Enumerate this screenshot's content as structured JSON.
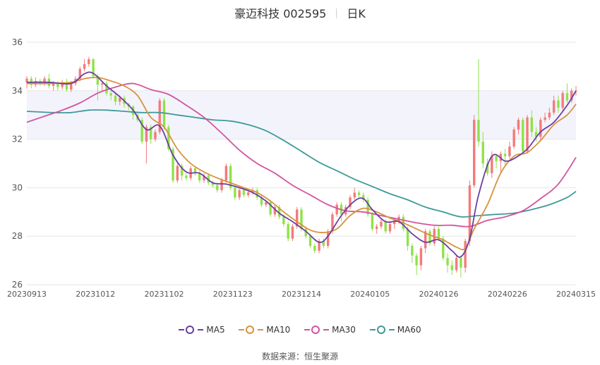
{
  "title": {
    "name": "豪迈科技 002595",
    "period": "日K"
  },
  "source_label": "数据来源：",
  "source_value": "恒生聚源",
  "colors": {
    "up": "#f47a7a",
    "down": "#8fe24a",
    "ma5": "#6b3fa0",
    "ma10": "#d9913c",
    "ma30": "#d453a0",
    "ma60": "#3f9a9a",
    "band": "#f3f4fb",
    "grid": "#e6e6e6"
  },
  "chart_data": {
    "type": "candlestick",
    "ylim": [
      26,
      36
    ],
    "yticks": [
      26,
      28,
      30,
      32,
      34,
      36
    ],
    "xticks": [
      "20230913",
      "20231012",
      "20231102",
      "20231123",
      "20231214",
      "20240105",
      "20240126",
      "20240226",
      "20240315"
    ],
    "legend": [
      "MA5",
      "MA10",
      "MA30",
      "MA60"
    ],
    "n_bars": 125,
    "candles": [
      [
        34.35,
        34.5,
        34.6,
        34.1
      ],
      [
        34.5,
        34.25,
        34.6,
        34.1
      ],
      [
        34.25,
        34.4,
        34.55,
        34.15
      ],
      [
        34.4,
        34.3,
        34.5,
        34.2
      ],
      [
        34.3,
        34.5,
        34.6,
        34.2
      ],
      [
        34.5,
        34.2,
        34.7,
        34.1
      ],
      [
        34.2,
        34.3,
        34.4,
        34.0
      ],
      [
        34.3,
        34.15,
        34.4,
        34.0
      ],
      [
        34.15,
        34.35,
        34.45,
        34.05
      ],
      [
        34.35,
        34.05,
        34.5,
        33.95
      ],
      [
        34.05,
        34.3,
        34.4,
        33.95
      ],
      [
        34.3,
        34.5,
        34.6,
        34.2
      ],
      [
        34.5,
        34.9,
        35.0,
        34.4
      ],
      [
        34.9,
        35.1,
        35.3,
        34.8
      ],
      [
        35.1,
        35.3,
        35.4,
        35.0
      ],
      [
        35.3,
        34.6,
        35.35,
        34.5
      ],
      [
        34.6,
        34.25,
        34.7,
        33.6
      ],
      [
        34.25,
        34.3,
        34.4,
        34.0
      ],
      [
        34.3,
        33.9,
        34.4,
        33.8
      ],
      [
        33.9,
        33.8,
        34.0,
        33.6
      ],
      [
        33.8,
        33.55,
        33.9,
        33.4
      ],
      [
        33.55,
        33.7,
        33.8,
        33.4
      ],
      [
        33.7,
        33.45,
        33.8,
        33.3
      ],
      [
        33.45,
        33.35,
        33.5,
        33.2
      ],
      [
        33.35,
        33.0,
        33.4,
        32.8
      ],
      [
        33.0,
        32.8,
        33.1,
        32.7
      ],
      [
        32.8,
        31.9,
        32.9,
        31.8
      ],
      [
        31.9,
        32.5,
        32.6,
        31.0
      ],
      [
        32.5,
        32.0,
        32.6,
        31.8
      ],
      [
        32.0,
        32.3,
        32.4,
        31.9
      ],
      [
        32.3,
        33.6,
        33.7,
        32.2
      ],
      [
        33.6,
        32.5,
        33.7,
        32.4
      ],
      [
        32.5,
        31.6,
        32.6,
        31.5
      ],
      [
        31.6,
        30.3,
        31.7,
        30.2
      ],
      [
        30.3,
        30.9,
        31.0,
        30.2
      ],
      [
        30.9,
        30.5,
        31.0,
        30.3
      ],
      [
        30.5,
        30.4,
        30.6,
        30.3
      ],
      [
        30.4,
        30.8,
        30.9,
        30.3
      ],
      [
        30.8,
        30.6,
        30.9,
        30.5
      ],
      [
        30.6,
        30.3,
        30.7,
        30.2
      ],
      [
        30.3,
        30.5,
        30.6,
        30.2
      ],
      [
        30.5,
        30.2,
        30.6,
        30.1
      ],
      [
        30.2,
        30.1,
        30.3,
        30.0
      ],
      [
        30.1,
        29.9,
        30.2,
        29.8
      ],
      [
        29.9,
        30.3,
        30.4,
        29.8
      ],
      [
        30.3,
        30.9,
        31.0,
        30.2
      ],
      [
        30.9,
        30.0,
        31.0,
        29.9
      ],
      [
        30.0,
        29.6,
        30.1,
        29.5
      ],
      [
        29.6,
        29.9,
        30.0,
        29.5
      ],
      [
        29.9,
        29.7,
        30.0,
        29.6
      ],
      [
        29.7,
        29.8,
        29.9,
        29.6
      ],
      [
        29.8,
        29.9,
        30.0,
        29.7
      ],
      [
        29.9,
        29.6,
        30.0,
        29.5
      ],
      [
        29.6,
        29.3,
        29.7,
        29.2
      ],
      [
        29.3,
        29.4,
        29.5,
        29.2
      ],
      [
        29.4,
        28.9,
        29.5,
        28.8
      ],
      [
        28.9,
        29.2,
        29.3,
        28.8
      ],
      [
        29.2,
        28.8,
        29.3,
        28.7
      ],
      [
        28.8,
        28.5,
        28.9,
        28.4
      ],
      [
        28.5,
        27.9,
        28.6,
        27.8
      ],
      [
        27.9,
        28.4,
        28.5,
        27.8
      ],
      [
        28.4,
        29.1,
        29.2,
        28.3
      ],
      [
        29.1,
        28.3,
        29.2,
        28.2
      ],
      [
        28.3,
        28.0,
        28.4,
        27.9
      ],
      [
        28.0,
        27.6,
        28.1,
        27.5
      ],
      [
        27.6,
        27.4,
        27.7,
        27.3
      ],
      [
        27.4,
        27.8,
        27.9,
        27.3
      ],
      [
        27.8,
        27.6,
        27.9,
        27.5
      ],
      [
        27.6,
        28.2,
        28.3,
        27.5
      ],
      [
        28.2,
        28.9,
        29.0,
        28.1
      ],
      [
        28.9,
        29.3,
        29.4,
        28.8
      ],
      [
        29.3,
        28.9,
        29.4,
        28.6
      ],
      [
        28.9,
        29.2,
        29.3,
        28.8
      ],
      [
        29.2,
        29.6,
        29.7,
        29.1
      ],
      [
        29.6,
        29.8,
        30.0,
        29.5
      ],
      [
        29.8,
        29.7,
        29.9,
        29.6
      ],
      [
        29.7,
        29.5,
        29.8,
        29.4
      ],
      [
        29.5,
        28.9,
        29.6,
        28.8
      ],
      [
        28.9,
        28.3,
        29.0,
        28.2
      ],
      [
        28.3,
        28.4,
        28.5,
        28.1
      ],
      [
        28.4,
        28.6,
        28.7,
        28.3
      ],
      [
        28.6,
        28.2,
        28.7,
        28.1
      ],
      [
        28.2,
        28.5,
        28.6,
        28.1
      ],
      [
        28.5,
        28.6,
        28.7,
        28.3
      ],
      [
        28.6,
        28.8,
        28.9,
        28.5
      ],
      [
        28.8,
        28.3,
        28.9,
        28.2
      ],
      [
        28.3,
        27.6,
        28.4,
        27.4
      ],
      [
        27.6,
        27.2,
        27.7,
        26.9
      ],
      [
        27.2,
        26.8,
        27.3,
        26.4
      ],
      [
        26.8,
        27.5,
        27.6,
        26.6
      ],
      [
        27.5,
        28.2,
        28.3,
        27.3
      ],
      [
        28.2,
        27.7,
        28.3,
        27.6
      ],
      [
        27.7,
        28.3,
        28.4,
        27.6
      ],
      [
        28.3,
        27.9,
        28.4,
        27.8
      ],
      [
        27.9,
        27.1,
        28.0,
        27.0
      ],
      [
        27.1,
        26.8,
        27.3,
        26.5
      ],
      [
        26.8,
        26.6,
        27.0,
        26.4
      ],
      [
        26.6,
        27.1,
        27.2,
        26.5
      ],
      [
        27.1,
        26.7,
        27.2,
        26.3
      ],
      [
        26.7,
        27.8,
        27.9,
        26.5
      ],
      [
        27.8,
        30.1,
        30.3,
        27.6
      ],
      [
        30.1,
        32.8,
        33.0,
        30.0
      ],
      [
        32.8,
        31.9,
        35.3,
        31.7
      ],
      [
        31.9,
        31.0,
        32.3,
        30.8
      ],
      [
        31.0,
        30.6,
        31.2,
        30.5
      ],
      [
        30.6,
        31.3,
        31.5,
        30.4
      ],
      [
        31.3,
        31.1,
        31.4,
        30.8
      ],
      [
        31.1,
        31.4,
        31.5,
        30.6
      ],
      [
        31.4,
        31.3,
        31.6,
        30.9
      ],
      [
        31.3,
        31.7,
        31.9,
        31.2
      ],
      [
        31.7,
        32.4,
        32.5,
        31.6
      ],
      [
        32.4,
        32.8,
        32.9,
        32.2
      ],
      [
        32.8,
        31.5,
        32.9,
        31.4
      ],
      [
        31.5,
        32.9,
        33.0,
        31.4
      ],
      [
        32.9,
        32.3,
        33.2,
        32.1
      ],
      [
        32.3,
        32.1,
        32.5,
        31.9
      ],
      [
        32.1,
        32.8,
        32.9,
        31.9
      ],
      [
        32.8,
        32.9,
        33.1,
        32.7
      ],
      [
        32.9,
        33.1,
        33.3,
        32.8
      ],
      [
        33.1,
        33.6,
        33.8,
        33.0
      ],
      [
        33.6,
        33.3,
        33.8,
        33.1
      ],
      [
        33.3,
        33.9,
        34.0,
        33.2
      ],
      [
        33.9,
        33.6,
        34.3,
        33.5
      ],
      [
        33.6,
        34.0,
        34.1,
        33.5
      ],
      [
        34.0,
        34.0,
        34.2,
        33.8
      ]
    ],
    "ma5": [
      [
        0,
        34.35
      ],
      [
        5,
        34.35
      ],
      [
        10,
        34.3
      ],
      [
        13,
        34.7
      ],
      [
        15,
        34.72
      ],
      [
        18,
        34.2
      ],
      [
        21,
        33.75
      ],
      [
        24,
        33.2
      ],
      [
        27,
        32.4
      ],
      [
        30,
        32.55
      ],
      [
        33,
        31.35
      ],
      [
        36,
        30.65
      ],
      [
        39,
        30.6
      ],
      [
        42,
        30.2
      ],
      [
        45,
        30.15
      ],
      [
        48,
        30.0
      ],
      [
        51,
        29.8
      ],
      [
        54,
        29.45
      ],
      [
        57,
        28.95
      ],
      [
        60,
        28.6
      ],
      [
        63,
        28.2
      ],
      [
        66,
        27.75
      ],
      [
        68,
        28.0
      ],
      [
        71,
        28.85
      ],
      [
        74,
        29.45
      ],
      [
        76,
        29.55
      ],
      [
        78,
        29.1
      ],
      [
        81,
        28.6
      ],
      [
        84,
        28.6
      ],
      [
        87,
        28.1
      ],
      [
        90,
        27.75
      ],
      [
        93,
        27.85
      ],
      [
        96,
        27.4
      ],
      [
        98,
        27.15
      ],
      [
        100,
        27.9
      ],
      [
        102,
        29.7
      ],
      [
        105,
        31.3
      ],
      [
        108,
        31.1
      ],
      [
        110,
        31.2
      ],
      [
        113,
        31.6
      ],
      [
        116,
        32.3
      ],
      [
        119,
        32.7
      ],
      [
        122,
        33.4
      ],
      [
        124,
        34.0
      ]
    ],
    "ma10": [
      [
        0,
        34.3
      ],
      [
        5,
        34.3
      ],
      [
        10,
        34.35
      ],
      [
        13,
        34.5
      ],
      [
        16,
        34.55
      ],
      [
        19,
        34.4
      ],
      [
        22,
        34.2
      ],
      [
        25,
        33.8
      ],
      [
        28,
        32.9
      ],
      [
        31,
        32.5
      ],
      [
        34,
        31.6
      ],
      [
        37,
        31.0
      ],
      [
        40,
        30.65
      ],
      [
        43,
        30.4
      ],
      [
        46,
        30.2
      ],
      [
        49,
        30.0
      ],
      [
        52,
        29.8
      ],
      [
        55,
        29.45
      ],
      [
        58,
        29.0
      ],
      [
        61,
        28.6
      ],
      [
        64,
        28.25
      ],
      [
        67,
        28.15
      ],
      [
        70,
        28.3
      ],
      [
        73,
        28.85
      ],
      [
        76,
        29.15
      ],
      [
        79,
        29.0
      ],
      [
        82,
        28.75
      ],
      [
        85,
        28.55
      ],
      [
        88,
        28.3
      ],
      [
        91,
        28.05
      ],
      [
        94,
        27.85
      ],
      [
        97,
        27.55
      ],
      [
        99,
        27.5
      ],
      [
        101,
        28.3
      ],
      [
        104,
        29.3
      ],
      [
        107,
        30.6
      ],
      [
        110,
        31.3
      ],
      [
        113,
        31.45
      ],
      [
        116,
        31.95
      ],
      [
        119,
        32.6
      ],
      [
        122,
        33.0
      ],
      [
        124,
        33.45
      ]
    ],
    "ma30": [
      [
        0,
        32.7
      ],
      [
        4,
        32.95
      ],
      [
        8,
        33.2
      ],
      [
        12,
        33.5
      ],
      [
        16,
        33.9
      ],
      [
        20,
        34.15
      ],
      [
        24,
        34.3
      ],
      [
        28,
        34.05
      ],
      [
        32,
        33.85
      ],
      [
        36,
        33.4
      ],
      [
        40,
        32.9
      ],
      [
        44,
        32.25
      ],
      [
        48,
        31.55
      ],
      [
        52,
        31.0
      ],
      [
        56,
        30.6
      ],
      [
        60,
        30.1
      ],
      [
        64,
        29.7
      ],
      [
        68,
        29.3
      ],
      [
        72,
        29.05
      ],
      [
        76,
        29.0
      ],
      [
        80,
        28.85
      ],
      [
        84,
        28.7
      ],
      [
        88,
        28.55
      ],
      [
        92,
        28.45
      ],
      [
        96,
        28.45
      ],
      [
        100,
        28.4
      ],
      [
        104,
        28.65
      ],
      [
        108,
        28.8
      ],
      [
        112,
        29.05
      ],
      [
        116,
        29.55
      ],
      [
        120,
        30.15
      ],
      [
        124,
        31.25
      ]
    ],
    "ma60": [
      [
        0,
        33.15
      ],
      [
        6,
        33.1
      ],
      [
        10,
        33.1
      ],
      [
        14,
        33.2
      ],
      [
        18,
        33.2
      ],
      [
        22,
        33.15
      ],
      [
        26,
        33.1
      ],
      [
        30,
        33.1
      ],
      [
        34,
        33.0
      ],
      [
        38,
        32.9
      ],
      [
        42,
        32.8
      ],
      [
        46,
        32.75
      ],
      [
        50,
        32.6
      ],
      [
        54,
        32.35
      ],
      [
        58,
        31.95
      ],
      [
        62,
        31.5
      ],
      [
        66,
        31.05
      ],
      [
        70,
        30.7
      ],
      [
        74,
        30.35
      ],
      [
        78,
        30.05
      ],
      [
        82,
        29.75
      ],
      [
        86,
        29.5
      ],
      [
        90,
        29.2
      ],
      [
        94,
        29.0
      ],
      [
        98,
        28.8
      ],
      [
        102,
        28.85
      ],
      [
        106,
        28.9
      ],
      [
        110,
        28.95
      ],
      [
        114,
        29.1
      ],
      [
        118,
        29.3
      ],
      [
        122,
        29.6
      ],
      [
        124,
        29.85
      ]
    ]
  }
}
